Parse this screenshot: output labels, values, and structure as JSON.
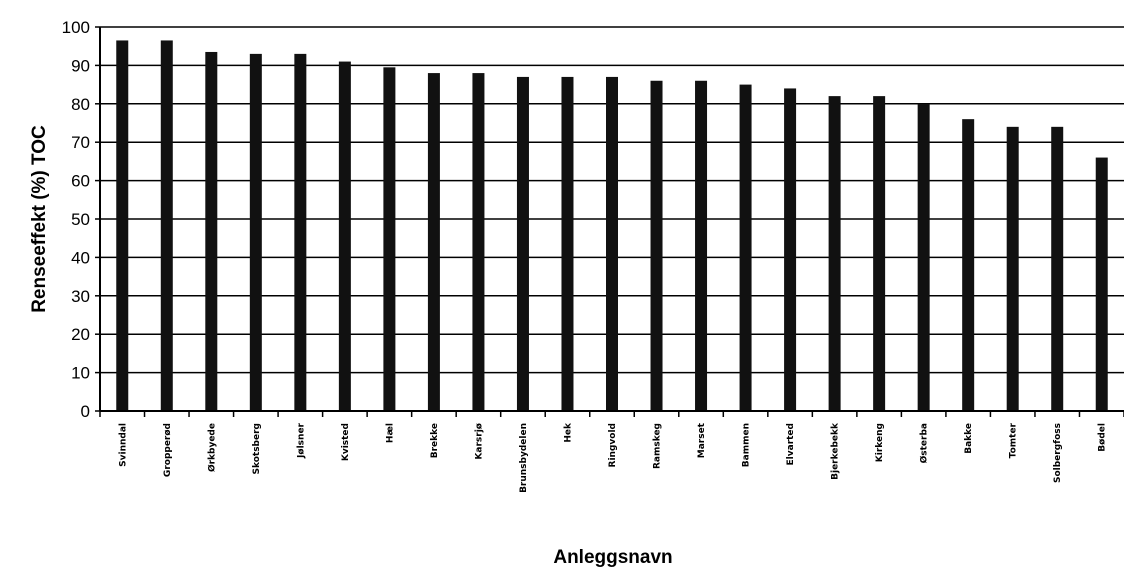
{
  "chart_data": {
    "type": "bar",
    "xlabel": "Anleggsnavn",
    "ylabel": "Renseeffekt (%) TOC",
    "ylim": [
      0,
      100
    ],
    "yticks": [
      0,
      10,
      20,
      30,
      40,
      50,
      60,
      70,
      80,
      90,
      100
    ],
    "grid": true,
    "legend": "none",
    "bar_color": "#111111",
    "categories": [
      "Svinndal",
      "Gropperød",
      "Ørkbyede",
      "Skotsberg",
      "Jølsner",
      "Kvisted",
      "Hæl",
      "Brekke",
      "Karsrjø",
      "Brunsbydelen",
      "Hek",
      "Ringvold",
      "Ramskeg",
      "Marset",
      "Bammen",
      "Elvarted",
      "Bjerkebekk",
      "Kirkeng",
      "Østerba",
      "Bakke",
      "Tomter",
      "Solbergfoss",
      "Bødel"
    ],
    "values": [
      96.5,
      96.5,
      93.5,
      93,
      93,
      91,
      89.5,
      88,
      88,
      87,
      87,
      87,
      86,
      86,
      85,
      84,
      82,
      82,
      80,
      76,
      74,
      74,
      66
    ]
  }
}
